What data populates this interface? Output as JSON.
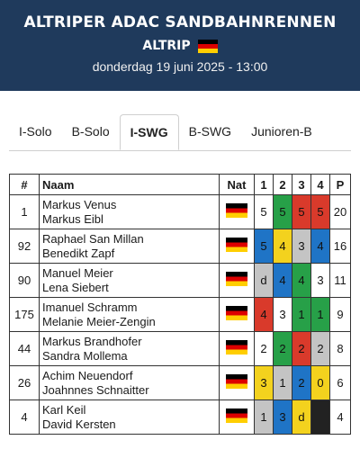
{
  "header": {
    "title": "ALTRIPER ADAC SANDBAHNRENNEN",
    "location": "ALTRIP",
    "datetime": "donderdag 19 juni 2025 - 13:00"
  },
  "tabs": [
    {
      "label": "I-Solo",
      "active": false
    },
    {
      "label": "B-Solo",
      "active": false
    },
    {
      "label": "I-SWG",
      "active": true
    },
    {
      "label": "B-SWG",
      "active": false
    },
    {
      "label": "Junioren-B",
      "active": false
    }
  ],
  "table": {
    "headers": {
      "number": "#",
      "name": "Naam",
      "nat": "Nat",
      "h1": "1",
      "h2": "2",
      "h3": "3",
      "h4": "4",
      "points": "P"
    },
    "rows": [
      {
        "number": "1",
        "driver": "Markus Venus",
        "passenger": "Markus Eibl",
        "heats": [
          {
            "v": "5",
            "c": "white"
          },
          {
            "v": "5",
            "c": "green"
          },
          {
            "v": "5",
            "c": "red"
          },
          {
            "v": "5",
            "c": "red"
          }
        ],
        "points": "20"
      },
      {
        "number": "92",
        "driver": "Raphael San Millan",
        "passenger": "Benedikt Zapf",
        "heats": [
          {
            "v": "5",
            "c": "blue"
          },
          {
            "v": "4",
            "c": "yellow"
          },
          {
            "v": "3",
            "c": "grey"
          },
          {
            "v": "4",
            "c": "blue"
          }
        ],
        "points": "16"
      },
      {
        "number": "90",
        "driver": "Manuel Meier",
        "passenger": "Lena Siebert",
        "heats": [
          {
            "v": "d",
            "c": "grey"
          },
          {
            "v": "4",
            "c": "blue"
          },
          {
            "v": "4",
            "c": "green"
          },
          {
            "v": "3",
            "c": "white"
          }
        ],
        "points": "11"
      },
      {
        "number": "175",
        "driver": "Imanuel Schramm",
        "passenger": "Melanie Meier-Zengin",
        "heats": [
          {
            "v": "4",
            "c": "red"
          },
          {
            "v": "3",
            "c": "white"
          },
          {
            "v": "1",
            "c": "green"
          },
          {
            "v": "1",
            "c": "green"
          }
        ],
        "points": "9"
      },
      {
        "number": "44",
        "driver": "Markus Brandhofer",
        "passenger": "Sandra Mollema",
        "heats": [
          {
            "v": "2",
            "c": "white"
          },
          {
            "v": "2",
            "c": "green"
          },
          {
            "v": "2",
            "c": "red"
          },
          {
            "v": "2",
            "c": "grey"
          }
        ],
        "points": "8"
      },
      {
        "number": "26",
        "driver": "Achim Neuendorf",
        "passenger": "Joahnnes Schnaitter",
        "heats": [
          {
            "v": "3",
            "c": "yellow"
          },
          {
            "v": "1",
            "c": "grey"
          },
          {
            "v": "2",
            "c": "blue"
          },
          {
            "v": "0",
            "c": "yellow"
          }
        ],
        "points": "6"
      },
      {
        "number": "4",
        "driver": "Karl Keil",
        "passenger": "David Kersten",
        "heats": [
          {
            "v": "1",
            "c": "grey"
          },
          {
            "v": "3",
            "c": "blue"
          },
          {
            "v": "d",
            "c": "yellow"
          },
          {
            "v": "",
            "c": "black"
          }
        ],
        "points": "4"
      }
    ]
  },
  "colors": {
    "header_bg": "#1f3a5c",
    "red": "#d93a2b",
    "green": "#27a048",
    "blue": "#1f74c6",
    "yellow": "#f3d21e",
    "grey": "#c4c4c4",
    "black": "#222222"
  },
  "icons": {
    "flag": "germany-flag-icon"
  }
}
